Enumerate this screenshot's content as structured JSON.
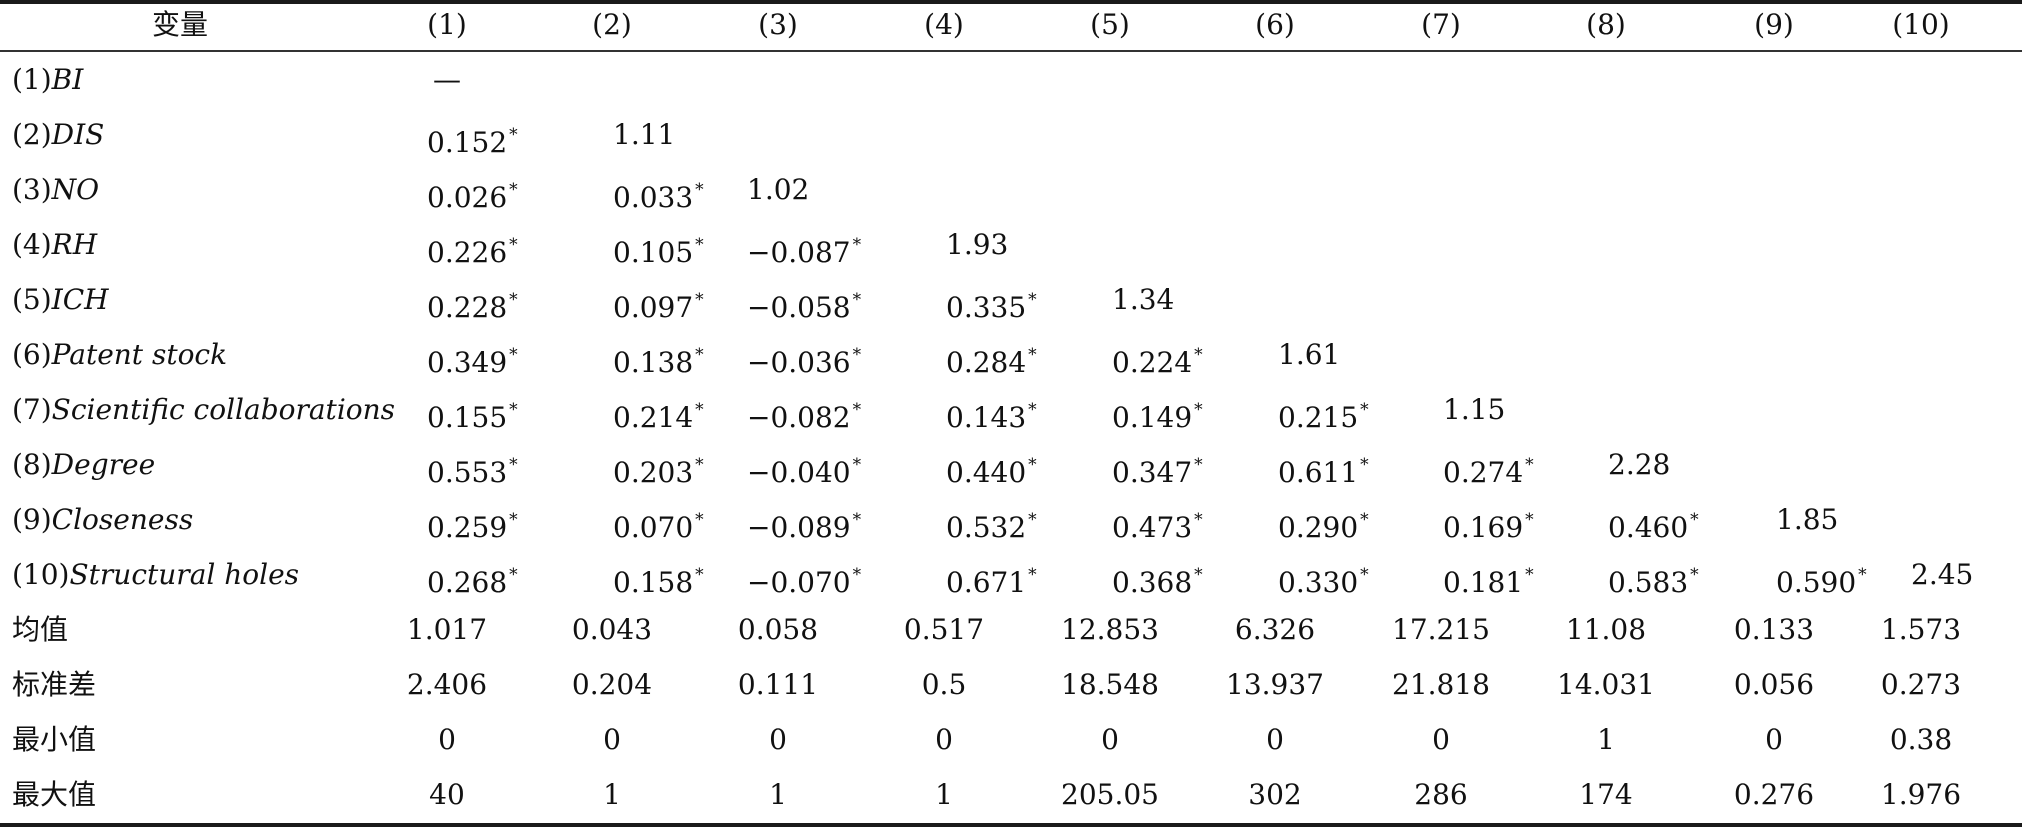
{
  "header": {
    "variable_label": "变量",
    "columns": [
      "(1)",
      "(2)",
      "(3)",
      "(4)",
      "(5)",
      "(6)",
      "(7)",
      "(8)",
      "(9)",
      "(10)"
    ]
  },
  "rows": [
    {
      "prefix": "(1)",
      "name": "BI",
      "cells": [
        {
          "v": "—",
          "s": ""
        }
      ]
    },
    {
      "prefix": "(2)",
      "name": "DIS",
      "cells": [
        {
          "v": "0.152",
          "s": "*"
        },
        {
          "v": "1.11",
          "s": ""
        }
      ]
    },
    {
      "prefix": "(3)",
      "name": "NO",
      "cells": [
        {
          "v": "0.026",
          "s": "*"
        },
        {
          "v": "0.033",
          "s": "*"
        },
        {
          "v": "1.02",
          "s": ""
        }
      ]
    },
    {
      "prefix": "(4)",
      "name": "RH",
      "cells": [
        {
          "v": "0.226",
          "s": "*"
        },
        {
          "v": "0.105",
          "s": "*"
        },
        {
          "v": "−0.087",
          "s": "*"
        },
        {
          "v": "1.93",
          "s": ""
        }
      ]
    },
    {
      "prefix": "(5)",
      "name": "ICH",
      "cells": [
        {
          "v": "0.228",
          "s": "*"
        },
        {
          "v": "0.097",
          "s": "*"
        },
        {
          "v": "−0.058",
          "s": "*"
        },
        {
          "v": "0.335",
          "s": "*"
        },
        {
          "v": "1.34",
          "s": ""
        }
      ]
    },
    {
      "prefix": "(6)",
      "name": "Patent stock",
      "cells": [
        {
          "v": "0.349",
          "s": "*"
        },
        {
          "v": "0.138",
          "s": "*"
        },
        {
          "v": "−0.036",
          "s": "*"
        },
        {
          "v": "0.284",
          "s": "*"
        },
        {
          "v": "0.224",
          "s": "*"
        },
        {
          "v": "1.61",
          "s": ""
        }
      ]
    },
    {
      "prefix": "(7)",
      "name": "Scientific collaborations",
      "cells": [
        {
          "v": "0.155",
          "s": "*"
        },
        {
          "v": "0.214",
          "s": "*"
        },
        {
          "v": "−0.082",
          "s": "*"
        },
        {
          "v": "0.143",
          "s": "*"
        },
        {
          "v": "0.149",
          "s": "*"
        },
        {
          "v": "0.215",
          "s": "*"
        },
        {
          "v": "1.15",
          "s": ""
        }
      ]
    },
    {
      "prefix": "(8)",
      "name": "Degree",
      "cells": [
        {
          "v": "0.553",
          "s": "*"
        },
        {
          "v": "0.203",
          "s": "*"
        },
        {
          "v": "−0.040",
          "s": "*"
        },
        {
          "v": "0.440",
          "s": "*"
        },
        {
          "v": "0.347",
          "s": "*"
        },
        {
          "v": "0.611",
          "s": "*"
        },
        {
          "v": "0.274",
          "s": "*"
        },
        {
          "v": "2.28",
          "s": ""
        }
      ]
    },
    {
      "prefix": "(9)",
      "name": "Closeness",
      "cells": [
        {
          "v": "0.259",
          "s": "*"
        },
        {
          "v": "0.070",
          "s": "*"
        },
        {
          "v": "−0.089",
          "s": "*"
        },
        {
          "v": "0.532",
          "s": "*"
        },
        {
          "v": "0.473",
          "s": "*"
        },
        {
          "v": "0.290",
          "s": "*"
        },
        {
          "v": "0.169",
          "s": "*"
        },
        {
          "v": "0.460",
          "s": "*"
        },
        {
          "v": "1.85",
          "s": ""
        }
      ]
    },
    {
      "prefix": "(10)",
      "name": "Structural holes",
      "cells": [
        {
          "v": "0.268",
          "s": "*"
        },
        {
          "v": "0.158",
          "s": "*"
        },
        {
          "v": "−0.070",
          "s": "*"
        },
        {
          "v": "0.671",
          "s": "*"
        },
        {
          "v": "0.368",
          "s": "*"
        },
        {
          "v": "0.330",
          "s": "*"
        },
        {
          "v": "0.181",
          "s": "*"
        },
        {
          "v": "0.583",
          "s": "*"
        },
        {
          "v": "0.590",
          "s": "*"
        },
        {
          "v": "2.45",
          "s": ""
        }
      ]
    }
  ],
  "stats": [
    {
      "label": "均值",
      "values": [
        "1.017",
        "0.043",
        "0.058",
        "0.517",
        "12.853",
        "6.326",
        "17.215",
        "11.08",
        "0.133",
        "1.573"
      ]
    },
    {
      "label": "标准差",
      "values": [
        "2.406",
        "0.204",
        "0.111",
        "0.5",
        "18.548",
        "13.937",
        "21.818",
        "14.031",
        "0.056",
        "0.273"
      ]
    },
    {
      "label": "最小值",
      "values": [
        "0",
        "0",
        "0",
        "0",
        "0",
        "0",
        "0",
        "1",
        "0",
        "0.38"
      ]
    },
    {
      "label": "最大值",
      "values": [
        "40",
        "1",
        "1",
        "1",
        "205.05",
        "302",
        "286",
        "174",
        "0.276",
        "1.976"
      ]
    }
  ]
}
